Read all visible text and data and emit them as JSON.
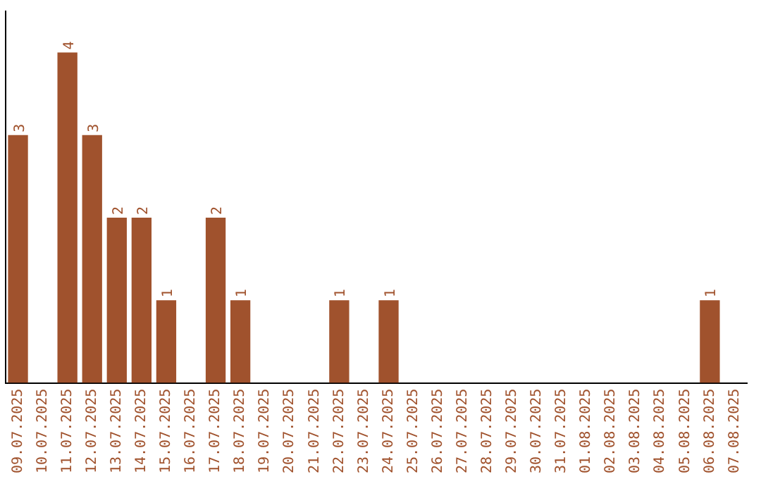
{
  "chart_data": {
    "type": "bar",
    "categories": [
      "09.07.2025",
      "10.07.2025",
      "11.07.2025",
      "12.07.2025",
      "13.07.2025",
      "14.07.2025",
      "15.07.2025",
      "16.07.2025",
      "17.07.2025",
      "18.07.2025",
      "19.07.2025",
      "20.07.2025",
      "21.07.2025",
      "22.07.2025",
      "23.07.2025",
      "24.07.2025",
      "25.07.2025",
      "26.07.2025",
      "27.07.2025",
      "28.07.2025",
      "29.07.2025",
      "30.07.2025",
      "31.07.2025",
      "01.08.2025",
      "02.08.2025",
      "03.08.2025",
      "04.08.2025",
      "05.08.2025",
      "06.08.2025",
      "07.08.2025"
    ],
    "values": [
      3,
      0,
      4,
      3,
      2,
      2,
      1,
      0,
      2,
      1,
      0,
      0,
      0,
      1,
      0,
      1,
      0,
      0,
      0,
      0,
      0,
      0,
      0,
      0,
      0,
      0,
      0,
      0,
      1,
      0
    ],
    "value_labels": [
      "3",
      null,
      "4",
      "3",
      "2",
      "2",
      "1",
      null,
      "2",
      "1",
      null,
      null,
      null,
      "1",
      null,
      "1",
      null,
      null,
      null,
      null,
      null,
      null,
      null,
      null,
      null,
      null,
      null,
      null,
      "1",
      null
    ],
    "color": "#a0522d",
    "tick_labels": "x",
    "grid": false,
    "legend": false
  }
}
